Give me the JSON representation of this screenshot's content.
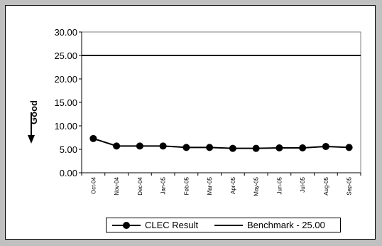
{
  "chart_data": {
    "type": "line",
    "ylabel": "Good",
    "ylim": [
      0,
      30
    ],
    "yticks": [
      "0.00",
      "5.00",
      "10.00",
      "15.00",
      "20.00",
      "25.00",
      "30.00"
    ],
    "categories": [
      "Oct-04",
      "Nov-04",
      "Dec-04",
      "Jan-05",
      "Feb-05",
      "Mar-05",
      "Apr-05",
      "May-05",
      "Jun-05",
      "Jul-05",
      "Aug-05",
      "Sep-05"
    ],
    "series": [
      {
        "name": "CLEC Result",
        "values": [
          7.3,
          5.7,
          5.7,
          5.7,
          5.4,
          5.4,
          5.2,
          5.2,
          5.3,
          5.3,
          5.6,
          5.4
        ],
        "color": "#000000",
        "marker": "circle"
      },
      {
        "name": "Benchmark - 25.00",
        "values": [
          25,
          25,
          25,
          25,
          25,
          25,
          25,
          25,
          25,
          25,
          25,
          25
        ],
        "color": "#000000",
        "marker": "none"
      }
    ],
    "grid": false,
    "legend_position": "bottom"
  },
  "colors": {
    "frame": "#c0c0c0",
    "background": "#ffffff",
    "plot_border": "#808080",
    "line": "#000000"
  }
}
